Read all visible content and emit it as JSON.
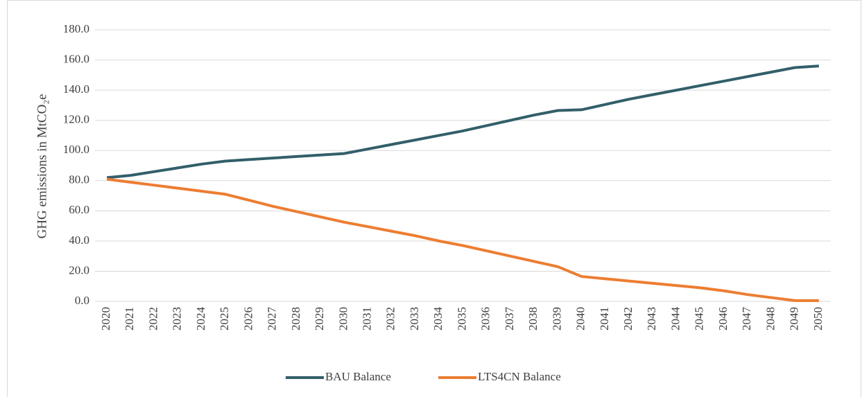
{
  "chart_data": {
    "type": "line",
    "y_label": "GHG emissions in MtCO₂e",
    "categories": [
      "2020",
      "2021",
      "2022",
      "2023",
      "2024",
      "2025",
      "2026",
      "2027",
      "2028",
      "2029",
      "2030",
      "2031",
      "2032",
      "2033",
      "2034",
      "2035",
      "2036",
      "2037",
      "2038",
      "2039",
      "2040",
      "2041",
      "2042",
      "2043",
      "2044",
      "2045",
      "2046",
      "2047",
      "2048",
      "2049",
      "2050"
    ],
    "series": [
      {
        "name": "BAU Balance",
        "color": "#325f6a",
        "values": [
          82,
          83.5,
          86,
          88.5,
          91,
          93,
          94,
          95,
          96,
          97,
          98,
          101,
          104,
          107,
          110,
          113,
          116.5,
          120,
          123.5,
          126.5,
          127,
          130.5,
          134,
          137,
          140,
          143,
          146,
          149,
          152,
          155,
          156
        ]
      },
      {
        "name": "LTS4CN Balance",
        "color": "#ed7d31",
        "values": [
          81,
          79,
          77,
          75,
          73,
          71,
          67,
          63,
          59.5,
          56,
          52.5,
          49.5,
          46.5,
          43.5,
          40,
          37,
          33.5,
          30,
          26.5,
          23,
          16.5,
          15,
          13.5,
          12,
          10.5,
          9,
          7,
          4.5,
          2.5,
          0.5,
          0.5
        ]
      }
    ],
    "ylim": [
      0,
      180
    ],
    "yticks": [
      {
        "value": 0,
        "label": "0.0"
      },
      {
        "value": 20,
        "label": "20.0"
      },
      {
        "value": 40,
        "label": "40.0"
      },
      {
        "value": 60,
        "label": "60.0"
      },
      {
        "value": 80,
        "label": "80.0"
      },
      {
        "value": 100,
        "label": "100.0"
      },
      {
        "value": 120,
        "label": "120.0"
      },
      {
        "value": 140,
        "label": "140.0"
      },
      {
        "value": 160,
        "label": "160.0"
      },
      {
        "value": 180,
        "label": "180.0"
      }
    ],
    "grid": true,
    "legend": "bottom"
  }
}
